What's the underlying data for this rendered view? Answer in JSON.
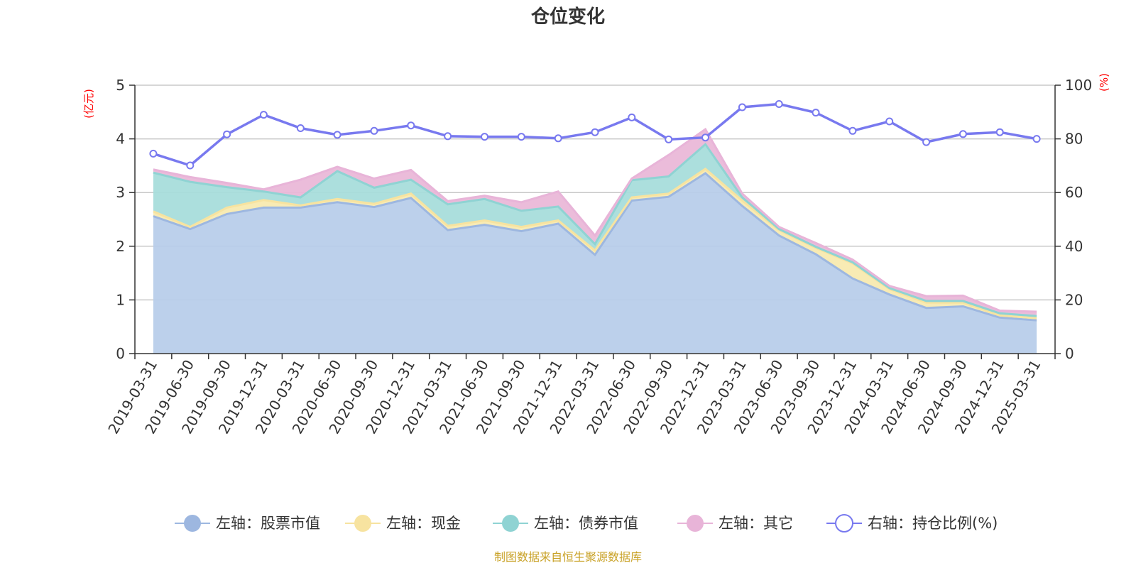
{
  "chart_data": {
    "type": "area",
    "title": "仓位变化",
    "left_axis_unit": "(亿元)",
    "right_axis_unit": "(%)",
    "ylim_left": [
      0,
      5
    ],
    "yticks_left": [
      "0",
      "1",
      "2",
      "3",
      "4",
      "5"
    ],
    "ylim_right": [
      0,
      100
    ],
    "yticks_right": [
      "0",
      "20",
      "40",
      "60",
      "80",
      "100"
    ],
    "categories": [
      "2019-03-31",
      "2019-06-30",
      "2019-09-30",
      "2019-12-31",
      "2020-03-31",
      "2020-06-30",
      "2020-09-30",
      "2020-12-31",
      "2021-03-31",
      "2021-06-30",
      "2021-09-30",
      "2021-12-31",
      "2022-03-31",
      "2022-06-30",
      "2022-09-30",
      "2022-12-31",
      "2023-03-31",
      "2023-06-30",
      "2023-09-30",
      "2023-12-31",
      "2024-03-31",
      "2024-06-30",
      "2024-09-30",
      "2024-12-31",
      "2025-03-31"
    ],
    "series": [
      {
        "name": "左轴：股票市值",
        "axis": "left",
        "stack": true,
        "color": "#9db7e0",
        "fill": "#b8cdea",
        "values": [
          2.56,
          2.32,
          2.6,
          2.72,
          2.72,
          2.82,
          2.73,
          2.9,
          2.3,
          2.4,
          2.28,
          2.42,
          1.84,
          2.85,
          2.92,
          3.36,
          2.75,
          2.2,
          1.85,
          1.4,
          1.1,
          0.85,
          0.88,
          0.67,
          0.62
        ]
      },
      {
        "name": "左轴：现金",
        "axis": "left",
        "stack": true,
        "color": "#f7e3a0",
        "fill": "#f8eab0",
        "values": [
          0.09,
          0.04,
          0.12,
          0.14,
          0.04,
          0.06,
          0.06,
          0.08,
          0.08,
          0.08,
          0.08,
          0.06,
          0.08,
          0.06,
          0.06,
          0.08,
          0.1,
          0.1,
          0.12,
          0.28,
          0.1,
          0.1,
          0.07,
          0.04,
          0.04
        ]
      },
      {
        "name": "左轴：债券市值",
        "axis": "left",
        "stack": true,
        "color": "#8fd3d3",
        "fill": "#a8dddb",
        "values": [
          0.72,
          0.84,
          0.38,
          0.16,
          0.15,
          0.52,
          0.3,
          0.26,
          0.4,
          0.4,
          0.3,
          0.26,
          0.12,
          0.32,
          0.32,
          0.46,
          0.06,
          0.02,
          0.02,
          0.02,
          0.02,
          0.03,
          0.03,
          0.04,
          0.04
        ]
      },
      {
        "name": "左轴：其它",
        "axis": "left",
        "stack": true,
        "color": "#e8b4d8",
        "fill": "#eab8d8",
        "values": [
          0.06,
          0.09,
          0.08,
          0.04,
          0.33,
          0.08,
          0.17,
          0.18,
          0.06,
          0.06,
          0.16,
          0.28,
          0.16,
          0.03,
          0.4,
          0.28,
          0.07,
          0.04,
          0.07,
          0.05,
          0.04,
          0.09,
          0.1,
          0.05,
          0.08
        ]
      },
      {
        "name": "右轴：持仓比例(%)",
        "axis": "right",
        "type": "line",
        "color": "#7879ef",
        "values": [
          74.5,
          70.1,
          81.7,
          89.0,
          84.0,
          81.5,
          83.0,
          85.0,
          81.0,
          80.8,
          80.8,
          80.2,
          82.5,
          88.0,
          79.8,
          80.5,
          91.8,
          93.0,
          89.8,
          83.0,
          86.5,
          78.8,
          81.8,
          82.5,
          80.0
        ]
      }
    ],
    "source_note": "制图数据来自恒生聚源数据库"
  }
}
